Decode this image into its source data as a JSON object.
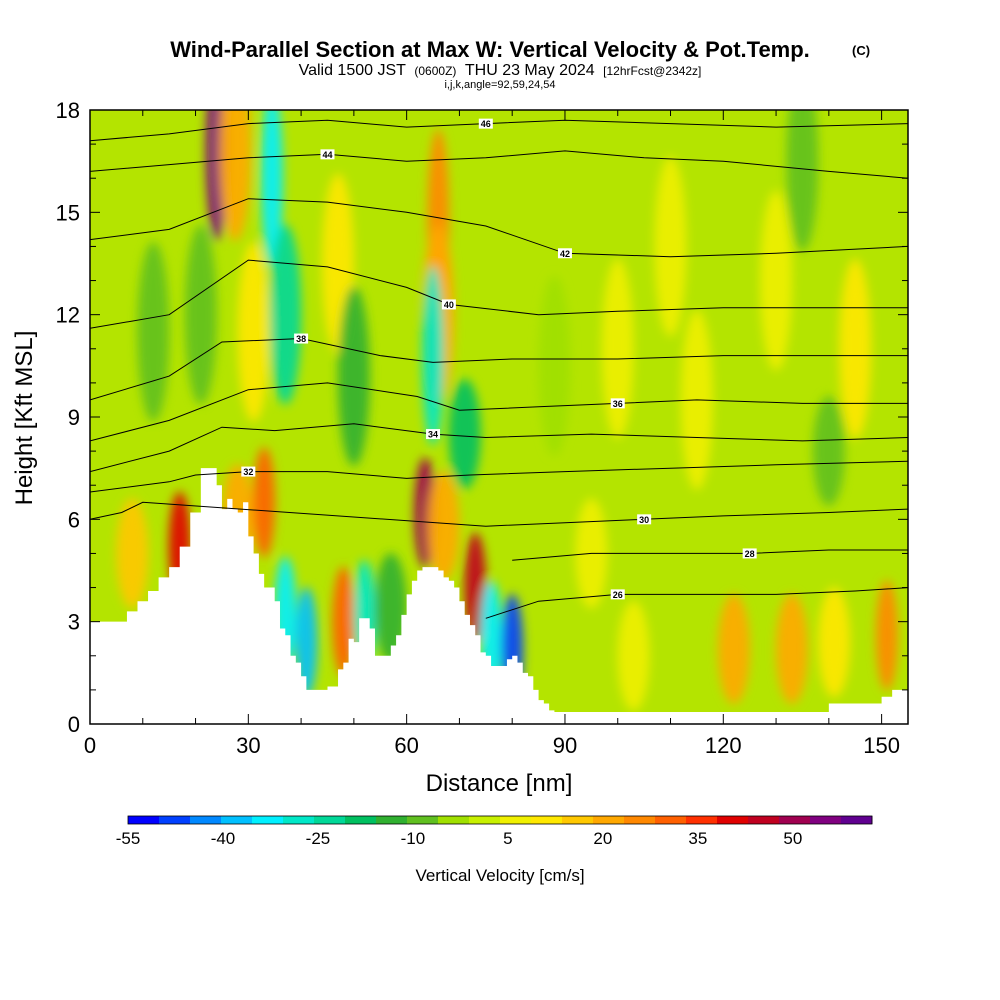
{
  "title": {
    "main": "Wind-Parallel Section at Max W: Vertical Velocity & Pot.Temp.",
    "mark": "(C)",
    "valid_a": "Valid 1500 JST",
    "valid_b": "(0600Z)",
    "valid_c": "THU 23 May 2024",
    "valid_d": "[12hrFcst@2342z]",
    "line3": "i,j,k,angle=92,59,24,54"
  },
  "chart_data": {
    "type": "heatmap",
    "xlabel": "Distance [nm]",
    "ylabel": "Height [Kft MSL]",
    "xlim": [
      0,
      155
    ],
    "ylim": [
      0,
      18
    ],
    "x_ticks": [
      "0",
      "30",
      "60",
      "90",
      "120",
      "150"
    ],
    "y_ticks": [
      "0",
      "3",
      "6",
      "9",
      "12",
      "15",
      "18"
    ],
    "fill_variable": "Vertical Velocity [cm/s]",
    "colorbar": {
      "label": "Vertical Velocity [cm/s]",
      "tick_labels": [
        "-55",
        "-40",
        "-25",
        "-10",
        "5",
        "20",
        "35",
        "50"
      ],
      "min": -55,
      "max": 62.5,
      "step": 5,
      "colors": [
        "#0000ff",
        "#0040ff",
        "#0088ff",
        "#00c0ff",
        "#00f0ff",
        "#00e8c8",
        "#00d898",
        "#00c060",
        "#30b030",
        "#60c020",
        "#a0e000",
        "#c8f000",
        "#f0f000",
        "#ffe800",
        "#ffc800",
        "#ffa800",
        "#ff8800",
        "#ff6000",
        "#ff3000",
        "#e00000",
        "#c00020",
        "#a00050",
        "#800080",
        "#600090"
      ]
    },
    "terrain": {
      "x": [
        0,
        5,
        7,
        9,
        11,
        13,
        15,
        17,
        19,
        21,
        22,
        23,
        24,
        25,
        26,
        27,
        28,
        29,
        30,
        31,
        32,
        33,
        34,
        35,
        36,
        37,
        38,
        39,
        40,
        41,
        42,
        43,
        44,
        45,
        46,
        47,
        48,
        49,
        50,
        51,
        52,
        53,
        54,
        55,
        56,
        57,
        58,
        59,
        60,
        61,
        62,
        63,
        64,
        65,
        66,
        67,
        68,
        69,
        70,
        71,
        72,
        73,
        74,
        75,
        76,
        77,
        78,
        79,
        80,
        81,
        82,
        83,
        84,
        85,
        86,
        87,
        88,
        89,
        90,
        100,
        110,
        120,
        130,
        135,
        140,
        145,
        150,
        152,
        153,
        155
      ],
      "y": [
        3.0,
        3.0,
        3.3,
        3.6,
        3.9,
        4.3,
        4.6,
        5.2,
        6.2,
        7.5,
        7.5,
        7.5,
        7.0,
        6.3,
        6.6,
        6.3,
        6.2,
        6.5,
        5.5,
        5.0,
        4.4,
        4.0,
        4.0,
        3.6,
        2.8,
        2.6,
        2.0,
        1.8,
        1.4,
        1.0,
        1.0,
        1.0,
        1.0,
        1.1,
        1.1,
        1.6,
        1.8,
        2.5,
        2.4,
        3.1,
        3.1,
        2.8,
        2.0,
        2.0,
        2.0,
        2.3,
        2.6,
        3.2,
        3.8,
        4.2,
        4.5,
        4.6,
        4.6,
        4.6,
        4.5,
        4.3,
        4.2,
        4.0,
        3.6,
        3.2,
        2.9,
        2.6,
        2.1,
        2.0,
        1.7,
        1.7,
        1.7,
        1.9,
        2.0,
        1.8,
        1.5,
        1.4,
        1.0,
        0.7,
        0.6,
        0.4,
        0.35,
        0.35,
        0.35,
        0.35,
        0.35,
        0.35,
        0.35,
        0.35,
        0.6,
        0.6,
        0.8,
        1.0,
        1.0,
        1.0
      ]
    },
    "theta_contours": [
      {
        "label": "26",
        "x": [
          75,
          85,
          100,
          115,
          130,
          145,
          155
        ],
        "y": [
          3.1,
          3.6,
          3.8,
          3.8,
          3.8,
          3.9,
          4.0
        ]
      },
      {
        "label": "28",
        "x": [
          80,
          95,
          110,
          125,
          140,
          155
        ],
        "y": [
          4.8,
          5.0,
          5.0,
          5.0,
          5.1,
          5.1
        ]
      },
      {
        "label": "30",
        "x": [
          0,
          6,
          10,
          75,
          90,
          105,
          120,
          140,
          155
        ],
        "y": [
          6.0,
          6.2,
          6.5,
          5.8,
          5.9,
          6.0,
          6.1,
          6.2,
          6.3
        ]
      },
      {
        "label": "32",
        "x": [
          0,
          15,
          20,
          30,
          45,
          60,
          72,
          90,
          110,
          130,
          155
        ],
        "y": [
          6.8,
          7.1,
          7.3,
          7.4,
          7.4,
          7.2,
          7.3,
          7.4,
          7.5,
          7.6,
          7.7
        ]
      },
      {
        "label": "34",
        "x": [
          0,
          15,
          25,
          35,
          50,
          65,
          75,
          95,
          115,
          135,
          155
        ],
        "y": [
          7.4,
          8.0,
          8.7,
          8.6,
          8.8,
          8.5,
          8.4,
          8.5,
          8.4,
          8.3,
          8.4
        ]
      },
      {
        "label": "36",
        "x": [
          0,
          15,
          30,
          45,
          62,
          70,
          85,
          100,
          115,
          135,
          155
        ],
        "y": [
          8.3,
          8.9,
          9.8,
          10.0,
          9.6,
          9.2,
          9.3,
          9.4,
          9.5,
          9.4,
          9.4
        ]
      },
      {
        "label": "38",
        "x": [
          0,
          15,
          25,
          40,
          55,
          65,
          80,
          100,
          120,
          140,
          155
        ],
        "y": [
          9.5,
          10.2,
          11.2,
          11.3,
          10.8,
          10.6,
          10.7,
          10.7,
          10.8,
          10.8,
          10.8
        ]
      },
      {
        "label": "40",
        "x": [
          0,
          15,
          30,
          45,
          60,
          68,
          85,
          100,
          120,
          140,
          155
        ],
        "y": [
          11.6,
          12.0,
          13.6,
          13.4,
          12.8,
          12.3,
          12.0,
          12.1,
          12.2,
          12.2,
          12.2
        ]
      },
      {
        "label": "42",
        "x": [
          0,
          15,
          30,
          45,
          60,
          75,
          90,
          110,
          130,
          155
        ],
        "y": [
          14.2,
          14.5,
          15.4,
          15.3,
          15.0,
          14.6,
          13.8,
          13.7,
          13.8,
          14.0
        ]
      },
      {
        "label": "44",
        "x": [
          0,
          15,
          30,
          45,
          60,
          75,
          90,
          105,
          120,
          140,
          155
        ],
        "y": [
          16.2,
          16.4,
          16.6,
          16.7,
          16.5,
          16.6,
          16.8,
          16.6,
          16.5,
          16.2,
          16.0
        ]
      },
      {
        "label": "46",
        "x": [
          0,
          15,
          30,
          45,
          60,
          75,
          90,
          110,
          130,
          155
        ],
        "y": [
          17.1,
          17.3,
          17.6,
          17.7,
          17.5,
          17.6,
          17.7,
          17.6,
          17.5,
          17.6
        ]
      }
    ],
    "w_cells": [
      {
        "x": 17,
        "y": 5.2,
        "w": 40
      },
      {
        "x": 8,
        "y": 5.0,
        "w": 18
      },
      {
        "x": 28,
        "y": 6.0,
        "w": 20
      },
      {
        "x": 33,
        "y": 6.5,
        "w": 32
      },
      {
        "x": 37,
        "y": 3.3,
        "w": -35
      },
      {
        "x": 41,
        "y": 2.4,
        "w": -40
      },
      {
        "x": 48,
        "y": 3.0,
        "w": 30
      },
      {
        "x": 52,
        "y": 3.2,
        "w": -28
      },
      {
        "x": 57,
        "y": 3.4,
        "w": -12
      },
      {
        "x": 63.5,
        "y": 6.2,
        "w": 50
      },
      {
        "x": 67,
        "y": 5.8,
        "w": 22
      },
      {
        "x": 73,
        "y": 4.0,
        "w": 45
      },
      {
        "x": 76,
        "y": 2.6,
        "w": -32
      },
      {
        "x": 80,
        "y": 2.2,
        "w": -48
      },
      {
        "x": 66,
        "y": 14.8,
        "w": 28
      },
      {
        "x": 66,
        "y": 12.0,
        "w": 22
      },
      {
        "x": 65,
        "y": 10.8,
        "w": -30
      },
      {
        "x": 71,
        "y": 8.5,
        "w": -20
      },
      {
        "x": 47,
        "y": 13.5,
        "w": 12
      },
      {
        "x": 50,
        "y": 10.2,
        "w": -15
      },
      {
        "x": 24,
        "y": 16.8,
        "w": 55
      },
      {
        "x": 27.5,
        "y": 16.8,
        "w": 20
      },
      {
        "x": 34.5,
        "y": 16.0,
        "w": -35
      },
      {
        "x": 37,
        "y": 12.0,
        "w": -25
      },
      {
        "x": 31,
        "y": 11.5,
        "w": 12
      },
      {
        "x": 21,
        "y": 12.0,
        "w": -8
      },
      {
        "x": 12,
        "y": 11.5,
        "w": -6
      },
      {
        "x": 110,
        "y": 14.0,
        "w": 8
      },
      {
        "x": 100,
        "y": 11.0,
        "w": 9
      },
      {
        "x": 115,
        "y": 9.5,
        "w": 7
      },
      {
        "x": 130,
        "y": 13.0,
        "w": 6
      },
      {
        "x": 135,
        "y": 16.5,
        "w": -10
      },
      {
        "x": 145,
        "y": 11.0,
        "w": 10
      },
      {
        "x": 122,
        "y": 2.2,
        "w": 22
      },
      {
        "x": 133,
        "y": 2.2,
        "w": 20
      },
      {
        "x": 141,
        "y": 2.4,
        "w": 12
      },
      {
        "x": 151,
        "y": 2.6,
        "w": 26
      },
      {
        "x": 103,
        "y": 2.0,
        "w": 6
      },
      {
        "x": 95,
        "y": 5.0,
        "w": 5
      },
      {
        "x": 88,
        "y": 10.5,
        "w": -5
      },
      {
        "x": 140,
        "y": 8.0,
        "w": -8
      }
    ]
  }
}
